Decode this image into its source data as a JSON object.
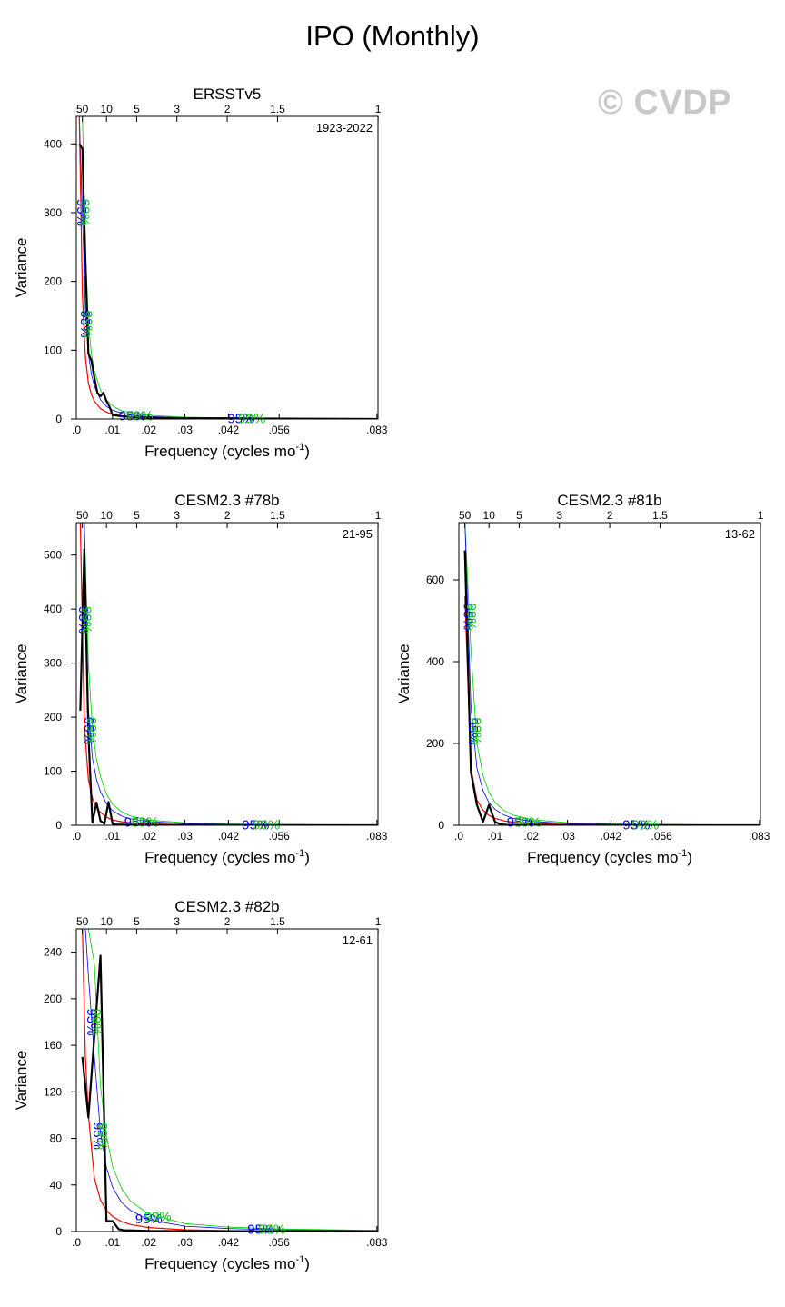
{
  "main_title": "IPO (Monthly)",
  "watermark": "© CVDP",
  "colors": {
    "spectrum": "#000000",
    "red_noise": "#ff0000",
    "ci95": "#0000ff",
    "ci99": "#00cc00"
  },
  "chart_data": [
    {
      "type": "line",
      "title": "ERSSTv5",
      "period": "1923-2022",
      "xlabel": "Frequency (cycles mo",
      "xlabel_sup": "-1",
      "xlabel_close": ")",
      "ylabel": "Variance",
      "xlim": [
        0,
        0.0833
      ],
      "ylim": [
        0,
        440
      ],
      "xticks": [
        0,
        0.01,
        0.02,
        0.03,
        0.042,
        0.056,
        0.083
      ],
      "xtick_labels": [
        ".0",
        ".01",
        ".02",
        ".03",
        ".042",
        ".056",
        ".083"
      ],
      "yticks": [
        0,
        100,
        200,
        300,
        400
      ],
      "ytick_labels": [
        "0",
        "100",
        "200",
        "300",
        "400"
      ],
      "top_ticks": [
        50,
        10,
        5,
        3,
        2,
        1.5,
        1
      ],
      "top_tick_labels": [
        "50",
        "10",
        "5",
        "3",
        "2",
        "1.5",
        "1"
      ],
      "series": [
        {
          "name": "spectrum",
          "x": [
            0.00083,
            0.00167,
            0.0025,
            0.00333,
            0.00417,
            0.005,
            0.00583,
            0.00667,
            0.0075,
            0.00833,
            0.00917,
            0.01,
            0.0125,
            0.015,
            0.02,
            0.03,
            0.042,
            0.056,
            0.083
          ],
          "y": [
            400,
            393,
            230,
            95,
            85,
            60,
            38,
            33,
            38,
            26,
            18,
            6,
            4,
            3,
            2,
            1,
            1,
            0.5,
            0
          ]
        },
        {
          "name": "red-noise",
          "x": [
            0.00083,
            0.00167,
            0.0025,
            0.00333,
            0.00417,
            0.005,
            0.00667,
            0.00833,
            0.01,
            0.0125,
            0.015,
            0.02,
            0.03,
            0.042,
            0.056,
            0.083
          ],
          "y": [
            440,
            180,
            90,
            52,
            36,
            26,
            15,
            10,
            7,
            4.5,
            3.2,
            2,
            1,
            0.6,
            0.4,
            0.2
          ]
        },
        {
          "name": "95%",
          "x": [
            0.00083,
            0.00167,
            0.0025,
            0.00333,
            0.00417,
            0.005,
            0.00667,
            0.00833,
            0.01,
            0.0125,
            0.015,
            0.02,
            0.03,
            0.042,
            0.056,
            0.083
          ],
          "y": [
            440,
            300,
            160,
            95,
            65,
            48,
            28,
            18,
            13,
            8.5,
            6,
            3.6,
            1.8,
            1.1,
            0.7,
            0.4
          ]
        },
        {
          "name": "99%",
          "x": [
            0.00083,
            0.00167,
            0.0025,
            0.00333,
            0.00417,
            0.005,
            0.00667,
            0.00833,
            0.01,
            0.0125,
            0.015,
            0.02,
            0.03,
            0.042,
            0.056,
            0.083
          ],
          "y": [
            440,
            440,
            250,
            140,
            95,
            70,
            42,
            28,
            19,
            12,
            9,
            5.4,
            2.7,
            1.6,
            1.1,
            0.6
          ]
        }
      ],
      "annotations": [
        {
          "text": "95%",
          "color": "#0000ff",
          "x": 0.0013,
          "y": 300,
          "rotate": 90
        },
        {
          "text": "99%",
          "color": "#00cc00",
          "x": 0.0021,
          "y": 300,
          "rotate": 90
        },
        {
          "text": "95%",
          "color": "#0000ff",
          "x": 0.0022,
          "y": 138,
          "rotate": 90
        },
        {
          "text": "99%",
          "color": "#00cc00",
          "x": 0.0029,
          "y": 138,
          "rotate": 90
        },
        {
          "text": "95%",
          "color": "#0000ff",
          "x": 0.0155,
          "y": 3,
          "rotate": 0
        },
        {
          "text": "99%",
          "color": "#00cc00",
          "x": 0.0175,
          "y": 3,
          "rotate": 0
        },
        {
          "text": "95%",
          "color": "#0000ff",
          "x": 0.0455,
          "y": -1,
          "rotate": 0
        },
        {
          "text": "99%",
          "color": "#00cc00",
          "x": 0.0485,
          "y": -1,
          "rotate": 0
        }
      ]
    },
    {
      "type": "line",
      "title": "CESM2.3 #78b",
      "period": "21-95",
      "xlabel": "Frequency (cycles mo",
      "xlabel_sup": "-1",
      "xlabel_close": ")",
      "ylabel": "Variance",
      "xlim": [
        0,
        0.0833
      ],
      "ylim": [
        0,
        560
      ],
      "xticks": [
        0,
        0.01,
        0.02,
        0.03,
        0.042,
        0.056,
        0.083
      ],
      "xtick_labels": [
        ".0",
        ".01",
        ".02",
        ".03",
        ".042",
        ".056",
        ".083"
      ],
      "yticks": [
        0,
        100,
        200,
        300,
        400,
        500
      ],
      "ytick_labels": [
        "0",
        "100",
        "200",
        "300",
        "400",
        "500"
      ],
      "top_ticks": [
        50,
        10,
        5,
        3,
        2,
        1.5,
        1
      ],
      "top_tick_labels": [
        "50",
        "10",
        "5",
        "3",
        "2",
        "1.5",
        "1"
      ],
      "series": [
        {
          "name": "spectrum",
          "x": [
            0.00111,
            0.00222,
            0.00333,
            0.00444,
            0.00556,
            0.00667,
            0.00778,
            0.00889,
            0.01,
            0.0111,
            0.0125,
            0.015,
            0.02,
            0.03,
            0.042,
            0.056,
            0.083
          ],
          "y": [
            212,
            510,
            170,
            5,
            42,
            8,
            3,
            43,
            3,
            1,
            1,
            1,
            0.5,
            0.5,
            0.3,
            0.2,
            0
          ]
        },
        {
          "name": "red-noise",
          "x": [
            0.00111,
            0.00222,
            0.00333,
            0.00444,
            0.00556,
            0.00667,
            0.00833,
            0.01,
            0.0125,
            0.015,
            0.02,
            0.03,
            0.042,
            0.056,
            0.083
          ],
          "y": [
            560,
            185,
            85,
            50,
            33,
            24,
            15,
            10,
            6.5,
            4.5,
            2.6,
            1.2,
            0.7,
            0.4,
            0.2
          ]
        },
        {
          "name": "95%",
          "x": [
            0.00111,
            0.00222,
            0.00333,
            0.00444,
            0.00556,
            0.00667,
            0.00833,
            0.01,
            0.0125,
            0.015,
            0.02,
            0.03,
            0.042,
            0.056,
            0.083
          ],
          "y": [
            560,
            560,
            215,
            125,
            85,
            62,
            40,
            27,
            17,
            12,
            6.8,
            3.1,
            1.7,
            1,
            0.5
          ]
        },
        {
          "name": "99%",
          "x": [
            0.00111,
            0.00222,
            0.00333,
            0.00444,
            0.00556,
            0.00667,
            0.00833,
            0.01,
            0.0125,
            0.015,
            0.02,
            0.03,
            0.042,
            0.056,
            0.083
          ],
          "y": [
            560,
            560,
            300,
            180,
            122,
            90,
            58,
            39,
            25,
            17,
            9.8,
            4.5,
            2.4,
            1.4,
            0.7
          ]
        }
      ],
      "annotations": [
        {
          "text": "95%",
          "color": "#0000ff",
          "x": 0.0018,
          "y": 380,
          "rotate": 90
        },
        {
          "text": "99%",
          "color": "#00cc00",
          "x": 0.0026,
          "y": 380,
          "rotate": 90
        },
        {
          "text": "95%",
          "color": "#0000ff",
          "x": 0.0032,
          "y": 175,
          "rotate": 90
        },
        {
          "text": "99%",
          "color": "#00cc00",
          "x": 0.004,
          "y": 175,
          "rotate": 90
        },
        {
          "text": "95%",
          "color": "#0000ff",
          "x": 0.017,
          "y": 4,
          "rotate": 0
        },
        {
          "text": "99%",
          "color": "#00cc00",
          "x": 0.019,
          "y": 4,
          "rotate": 0
        },
        {
          "text": "95%",
          "color": "#0000ff",
          "x": 0.0495,
          "y": -1,
          "rotate": 0
        },
        {
          "text": "99%",
          "color": "#00cc00",
          "x": 0.0525,
          "y": -1,
          "rotate": 0
        }
      ]
    },
    {
      "type": "line",
      "title": "CESM2.3 #81b",
      "period": "13-62",
      "xlabel": "Frequency (cycles mo",
      "xlabel_sup": "-1",
      "xlabel_close": ")",
      "ylabel": "Variance",
      "xlim": [
        0,
        0.0833
      ],
      "ylim": [
        0,
        740
      ],
      "xticks": [
        0,
        0.01,
        0.02,
        0.03,
        0.042,
        0.056,
        0.083
      ],
      "xtick_labels": [
        ".0",
        ".01",
        ".02",
        ".03",
        ".042",
        ".056",
        ".083"
      ],
      "yticks": [
        0,
        200,
        400,
        600
      ],
      "ytick_labels": [
        "0",
        "200",
        "400",
        "600"
      ],
      "top_ticks": [
        50,
        10,
        5,
        3,
        2,
        1.5,
        1
      ],
      "top_tick_labels": [
        "50",
        "10",
        "5",
        "3",
        "2",
        "1.5",
        "1"
      ],
      "series": [
        {
          "name": "spectrum",
          "x": [
            0.00167,
            0.00333,
            0.005,
            0.00667,
            0.00833,
            0.01,
            0.0117,
            0.0133,
            0.015,
            0.02,
            0.03,
            0.042,
            0.056,
            0.083
          ],
          "y": [
            672,
            130,
            50,
            8,
            50,
            8,
            2,
            1,
            1,
            0.8,
            0.5,
            0.3,
            0.2,
            0
          ]
        },
        {
          "name": "red-noise",
          "x": [
            0.00167,
            0.00333,
            0.005,
            0.00667,
            0.00833,
            0.01,
            0.0125,
            0.015,
            0.02,
            0.03,
            0.042,
            0.056,
            0.083
          ],
          "y": [
            560,
            140,
            62,
            37,
            24,
            17,
            11,
            7.5,
            4.2,
            1.9,
            1.1,
            0.6,
            0.3
          ]
        },
        {
          "name": "95%",
          "x": [
            0.00167,
            0.00333,
            0.005,
            0.00667,
            0.00833,
            0.01,
            0.0125,
            0.015,
            0.02,
            0.03,
            0.042,
            0.056,
            0.083
          ],
          "y": [
            740,
            290,
            140,
            85,
            55,
            39,
            25,
            17,
            9.6,
            4.3,
            2.4,
            1.4,
            0.7
          ]
        },
        {
          "name": "99%",
          "x": [
            0.00167,
            0.00333,
            0.005,
            0.00667,
            0.00833,
            0.01,
            0.0125,
            0.015,
            0.02,
            0.03,
            0.042,
            0.056,
            0.083
          ],
          "y": [
            740,
            430,
            200,
            122,
            80,
            56,
            36,
            25,
            14,
            6.2,
            3.4,
            2,
            1
          ]
        }
      ],
      "annotations": [
        {
          "text": "95%",
          "color": "#0000ff",
          "x": 0.0024,
          "y": 510,
          "rotate": 90
        },
        {
          "text": "99%",
          "color": "#00cc00",
          "x": 0.0032,
          "y": 510,
          "rotate": 90
        },
        {
          "text": "95%",
          "color": "#0000ff",
          "x": 0.0038,
          "y": 230,
          "rotate": 90
        },
        {
          "text": "99%",
          "color": "#00cc00",
          "x": 0.0046,
          "y": 230,
          "rotate": 90
        },
        {
          "text": "95%",
          "color": "#0000ff",
          "x": 0.017,
          "y": 5,
          "rotate": 0
        },
        {
          "text": "99%",
          "color": "#00cc00",
          "x": 0.019,
          "y": 5,
          "rotate": 0
        },
        {
          "text": "95%",
          "color": "#0000ff",
          "x": 0.049,
          "y": -1,
          "rotate": 0
        },
        {
          "text": "99%",
          "color": "#00cc00",
          "x": 0.0515,
          "y": -1,
          "rotate": 0
        }
      ]
    },
    {
      "type": "line",
      "title": "CESM2.3 #82b",
      "period": "12-61",
      "xlabel": "Frequency (cycles mo",
      "xlabel_sup": "-1",
      "xlabel_close": ")",
      "ylabel": "Variance",
      "xlim": [
        0,
        0.0833
      ],
      "ylim": [
        0,
        260
      ],
      "xticks": [
        0,
        0.01,
        0.02,
        0.03,
        0.042,
        0.056,
        0.083
      ],
      "xtick_labels": [
        ".0",
        ".01",
        ".02",
        ".03",
        ".042",
        ".056",
        ".083"
      ],
      "yticks": [
        0,
        40,
        80,
        120,
        160,
        200,
        240
      ],
      "ytick_labels": [
        "0",
        "40",
        "80",
        "120",
        "160",
        "200",
        "240"
      ],
      "top_ticks": [
        50,
        10,
        5,
        3,
        2,
        1.5,
        1
      ],
      "top_tick_labels": [
        "50",
        "10",
        "5",
        "3",
        "2",
        "1.5",
        "1"
      ],
      "series": [
        {
          "name": "spectrum",
          "x": [
            0.00167,
            0.00333,
            0.005,
            0.00667,
            0.00833,
            0.01,
            0.0117,
            0.0133,
            0.015,
            0.02,
            0.03,
            0.042,
            0.056,
            0.083
          ],
          "y": [
            150,
            98,
            168,
            237,
            9,
            9,
            2,
            1,
            1,
            0.5,
            0.3,
            0.2,
            0.1,
            0
          ]
        },
        {
          "name": "red-noise",
          "x": [
            0.00083,
            0.00167,
            0.0025,
            0.00333,
            0.005,
            0.00667,
            0.00833,
            0.01,
            0.0125,
            0.015,
            0.02,
            0.03,
            0.042,
            0.056,
            0.083
          ],
          "y": [
            260,
            260,
            150,
            100,
            46,
            27,
            18,
            13,
            8.5,
            6,
            3.4,
            1.5,
            0.8,
            0.5,
            0.2
          ]
        },
        {
          "name": "95%",
          "x": [
            0.00167,
            0.0025,
            0.00333,
            0.005,
            0.00667,
            0.00833,
            0.01,
            0.0125,
            0.015,
            0.02,
            0.03,
            0.042,
            0.056,
            0.083
          ],
          "y": [
            260,
            260,
            220,
            150,
            85,
            55,
            38,
            25,
            18,
            10,
            4.6,
            2.6,
            1.5,
            0.7
          ]
        },
        {
          "name": "99%",
          "x": [
            0.00167,
            0.0025,
            0.00333,
            0.005,
            0.00667,
            0.00833,
            0.01,
            0.0125,
            0.015,
            0.02,
            0.03,
            0.042,
            0.056,
            0.083
          ],
          "y": [
            260,
            260,
            260,
            230,
            125,
            82,
            56,
            37,
            26,
            15,
            6.8,
            3.8,
            2.2,
            1
          ]
        }
      ],
      "annotations": [
        {
          "text": "95%",
          "color": "#0000ff",
          "x": 0.004,
          "y": 180,
          "rotate": 90
        },
        {
          "text": "99%",
          "color": "#00cc00",
          "x": 0.0052,
          "y": 180,
          "rotate": 90
        },
        {
          "text": "95%",
          "color": "#0000ff",
          "x": 0.0058,
          "y": 82,
          "rotate": 90
        },
        {
          "text": "99%",
          "color": "#00cc00",
          "x": 0.007,
          "y": 82,
          "rotate": 90
        },
        {
          "text": "95%",
          "color": "#0000ff",
          "x": 0.02,
          "y": 10,
          "rotate": 0
        },
        {
          "text": "99%",
          "color": "#00cc00",
          "x": 0.0225,
          "y": 12,
          "rotate": 0
        },
        {
          "text": "95%",
          "color": "#0000ff",
          "x": 0.051,
          "y": 1,
          "rotate": 0
        },
        {
          "text": "99%",
          "color": "#00cc00",
          "x": 0.054,
          "y": 1,
          "rotate": 0
        }
      ]
    }
  ]
}
